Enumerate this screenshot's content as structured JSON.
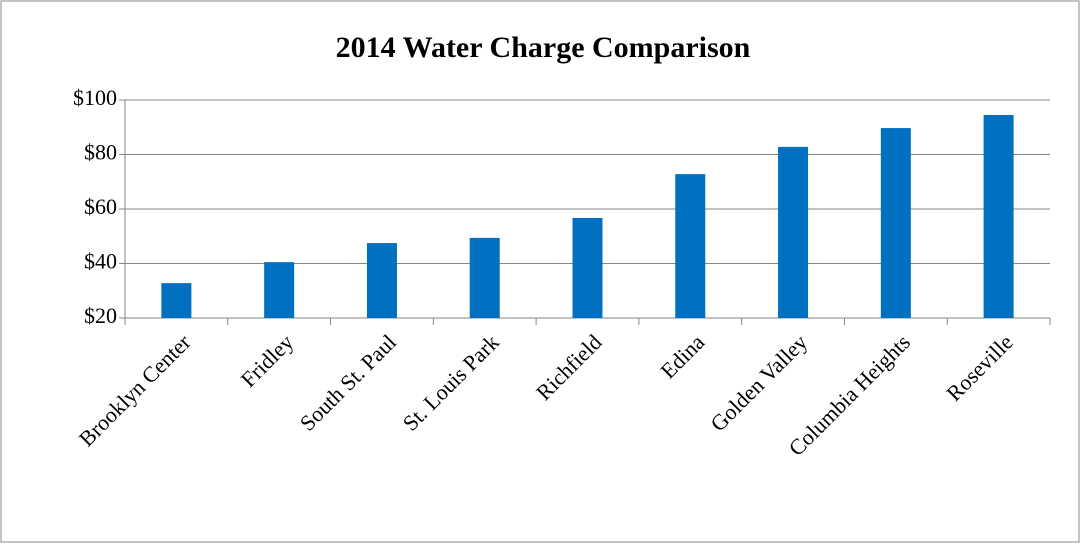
{
  "chart_data": {
    "type": "bar",
    "title": "2014 Water Charge Comparison",
    "categories": [
      "Brooklyn Center",
      "Fridley",
      "South St. Paul",
      "St. Louis Park",
      "Richfield",
      "Edina",
      "Golden Valley",
      "Columbia Heights",
      "Roseville"
    ],
    "values": [
      32.8,
      40.5,
      47.5,
      49.4,
      56.7,
      72.8,
      82.8,
      89.7,
      94.5
    ],
    "color": "#0070c0",
    "ylim": [
      20,
      100
    ],
    "yticks": [
      {
        "value": 20,
        "label": "$20"
      },
      {
        "value": 40,
        "label": "$40"
      },
      {
        "value": 60,
        "label": "$60"
      },
      {
        "value": 80,
        "label": "$80"
      },
      {
        "value": 100,
        "label": "$100"
      }
    ],
    "grid": true
  }
}
